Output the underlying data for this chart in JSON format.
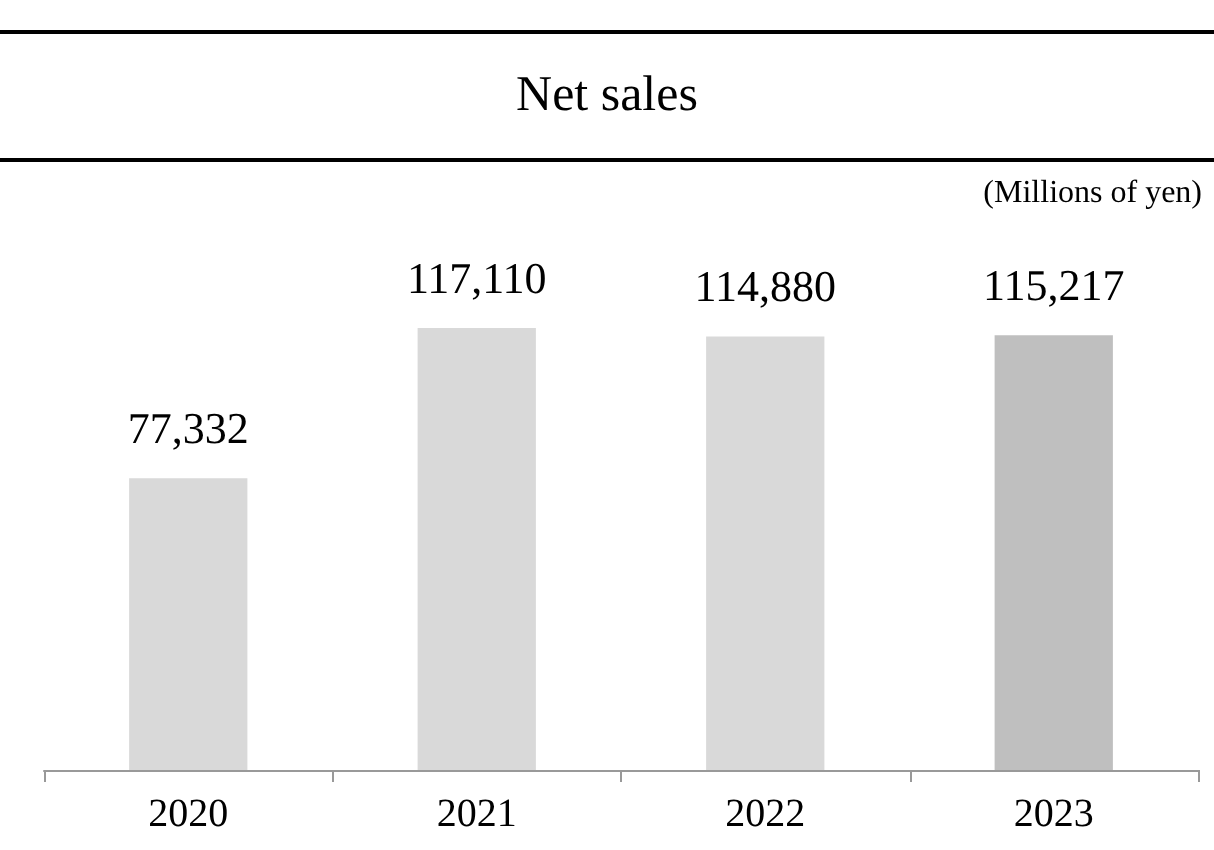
{
  "chart_data": {
    "type": "bar",
    "title": "Net sales",
    "annotations": [
      "(Millions of yen)"
    ],
    "categories": [
      "2020",
      "2021",
      "2022",
      "2023"
    ],
    "values": [
      77332,
      117110,
      114880,
      115217
    ],
    "colors": [
      "#d9d9d9",
      "#d9d9d9",
      "#d9d9d9",
      "#bfbfbf"
    ],
    "value_labels": [
      "77,332",
      "117,110",
      "114,880",
      "115,217"
    ],
    "tick_labels": "x"
  }
}
